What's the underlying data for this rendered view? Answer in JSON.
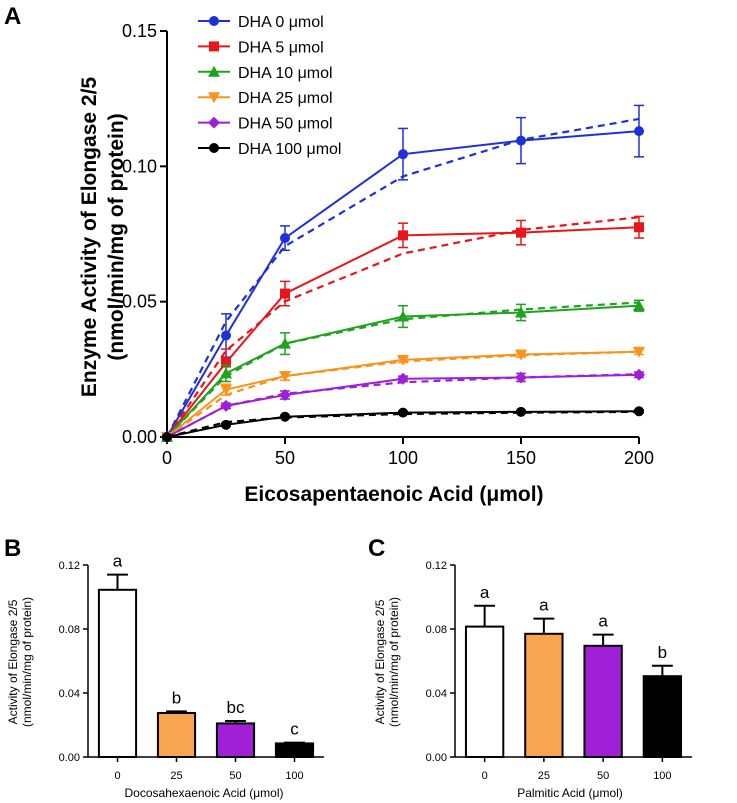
{
  "chart_data": [
    {
      "panel": "A",
      "type": "line",
      "xlabel": "Eicosapentaenoic Acid (μmol)",
      "ylabel_line1": "Enzyme Activity of Elongase 2/5",
      "ylabel_line2": "(nmol/min/mg of protein)",
      "xlim": [
        0,
        200
      ],
      "ylim": [
        0,
        0.15
      ],
      "xticks": [
        0,
        50,
        100,
        150,
        200
      ],
      "xtick_labels": [
        "0",
        "50",
        "100",
        "150",
        "200"
      ],
      "yticks": [
        0,
        0.05,
        0.1,
        0.15
      ],
      "ytick_labels": [
        "0.00",
        "0.05",
        "0.10",
        "0.15"
      ],
      "x": [
        0,
        25,
        50,
        100,
        150,
        200
      ],
      "series": [
        {
          "name": "DHA 0 μmol",
          "color": "#1f2fd9",
          "marker": "circle",
          "values": [
            0,
            0.0375,
            0.0735,
            0.1045,
            0.1095,
            0.113
          ],
          "errors": [
            0,
            0.008,
            0.0045,
            0.0095,
            0.0085,
            0.0095
          ],
          "fit": [
            0,
            0.0427,
            0.0705,
            0.0963,
            0.1098,
            0.1175
          ]
        },
        {
          "name": "DHA 5 μmol",
          "color": "#e8161b",
          "marker": "square",
          "values": [
            0,
            0.0275,
            0.053,
            0.0745,
            0.0755,
            0.0775
          ],
          "errors": [
            0,
            0.005,
            0.0045,
            0.0045,
            0.0045,
            0.004
          ],
          "fit": [
            0,
            0.0319,
            0.0501,
            0.0678,
            0.0765,
            0.0812
          ]
        },
        {
          "name": "DHA 10 μmol",
          "color": "#1ea31e",
          "marker": "triangle",
          "values": [
            0,
            0.0235,
            0.0345,
            0.0445,
            0.046,
            0.0485
          ],
          "errors": [
            0,
            0.003,
            0.004,
            0.004,
            0.003,
            0.002
          ],
          "fit": [
            0,
            0.0225,
            0.0345,
            0.0435,
            0.0471,
            0.0497
          ]
        },
        {
          "name": "DHA 25 μmol",
          "color": "#f7941d",
          "marker": "triangle-down",
          "values": [
            0,
            0.0175,
            0.0225,
            0.0285,
            0.0305,
            0.0315
          ],
          "errors": [
            0,
            0.002,
            0.0015,
            0.001,
            0.001,
            0.001
          ],
          "fit": [
            0,
            0.0155,
            0.0225,
            0.0279,
            0.0302,
            0.0315
          ]
        },
        {
          "name": "DHA 50 μmol",
          "color": "#9d1fd6",
          "marker": "diamond",
          "values": [
            0,
            0.0115,
            0.0155,
            0.0215,
            0.022,
            0.023
          ],
          "errors": [
            0,
            0.001,
            0.0015,
            0.001,
            0.0015,
            0.001
          ],
          "fit": [
            0,
            0.0115,
            0.016,
            0.0202,
            0.022,
            0.0232
          ]
        },
        {
          "name": "DHA 100 μmol",
          "color": "#000000",
          "marker": "circle",
          "values": [
            0,
            0.0045,
            0.0075,
            0.009,
            0.0093,
            0.0095
          ],
          "errors": [
            0,
            0.0005,
            0.0005,
            0.0005,
            0.0005,
            0.0005
          ],
          "fit": [
            0,
            0.0055,
            0.0072,
            0.0085,
            0.009,
            0.0093
          ]
        }
      ]
    },
    {
      "panel": "B",
      "type": "bar",
      "xlabel": "Docosahexaenoic Acid (μmol)",
      "ylabel_line1": "Activity of Elongase 2/5",
      "ylabel_line2": "(nmol/min/mg of protein)",
      "ylim": [
        0,
        0.12
      ],
      "yticks": [
        0,
        0.04,
        0.08,
        0.12
      ],
      "ytick_labels": [
        "0.00",
        "0.04",
        "0.08",
        "0.12"
      ],
      "categories": [
        "0",
        "25",
        "50",
        "100"
      ],
      "values": [
        0.1045,
        0.0275,
        0.021,
        0.0085
      ],
      "errors": [
        0.0095,
        0.001,
        0.0015,
        0.0005
      ],
      "colors": [
        "#ffffff",
        "#f9a451",
        "#a020d8",
        "#000000"
      ],
      "significance": [
        "a",
        "b",
        "bc",
        "c"
      ]
    },
    {
      "panel": "C",
      "type": "bar",
      "xlabel": "Palmitic Acid (μmol)",
      "ylabel_line1": "Activity of Elongase 2/5",
      "ylabel_line2": "(nmol/min/mg of protein)",
      "ylim": [
        0,
        0.12
      ],
      "yticks": [
        0,
        0.04,
        0.08,
        0.12
      ],
      "ytick_labels": [
        "0.00",
        "0.04",
        "0.08",
        "0.12"
      ],
      "categories": [
        "0",
        "25",
        "50",
        "100"
      ],
      "values": [
        0.0815,
        0.077,
        0.0695,
        0.0505
      ],
      "errors": [
        0.013,
        0.0095,
        0.007,
        0.0065
      ],
      "colors": [
        "#ffffff",
        "#f9a451",
        "#a020d8",
        "#000000"
      ],
      "significance": [
        "a",
        "a",
        "a",
        "b"
      ]
    }
  ]
}
